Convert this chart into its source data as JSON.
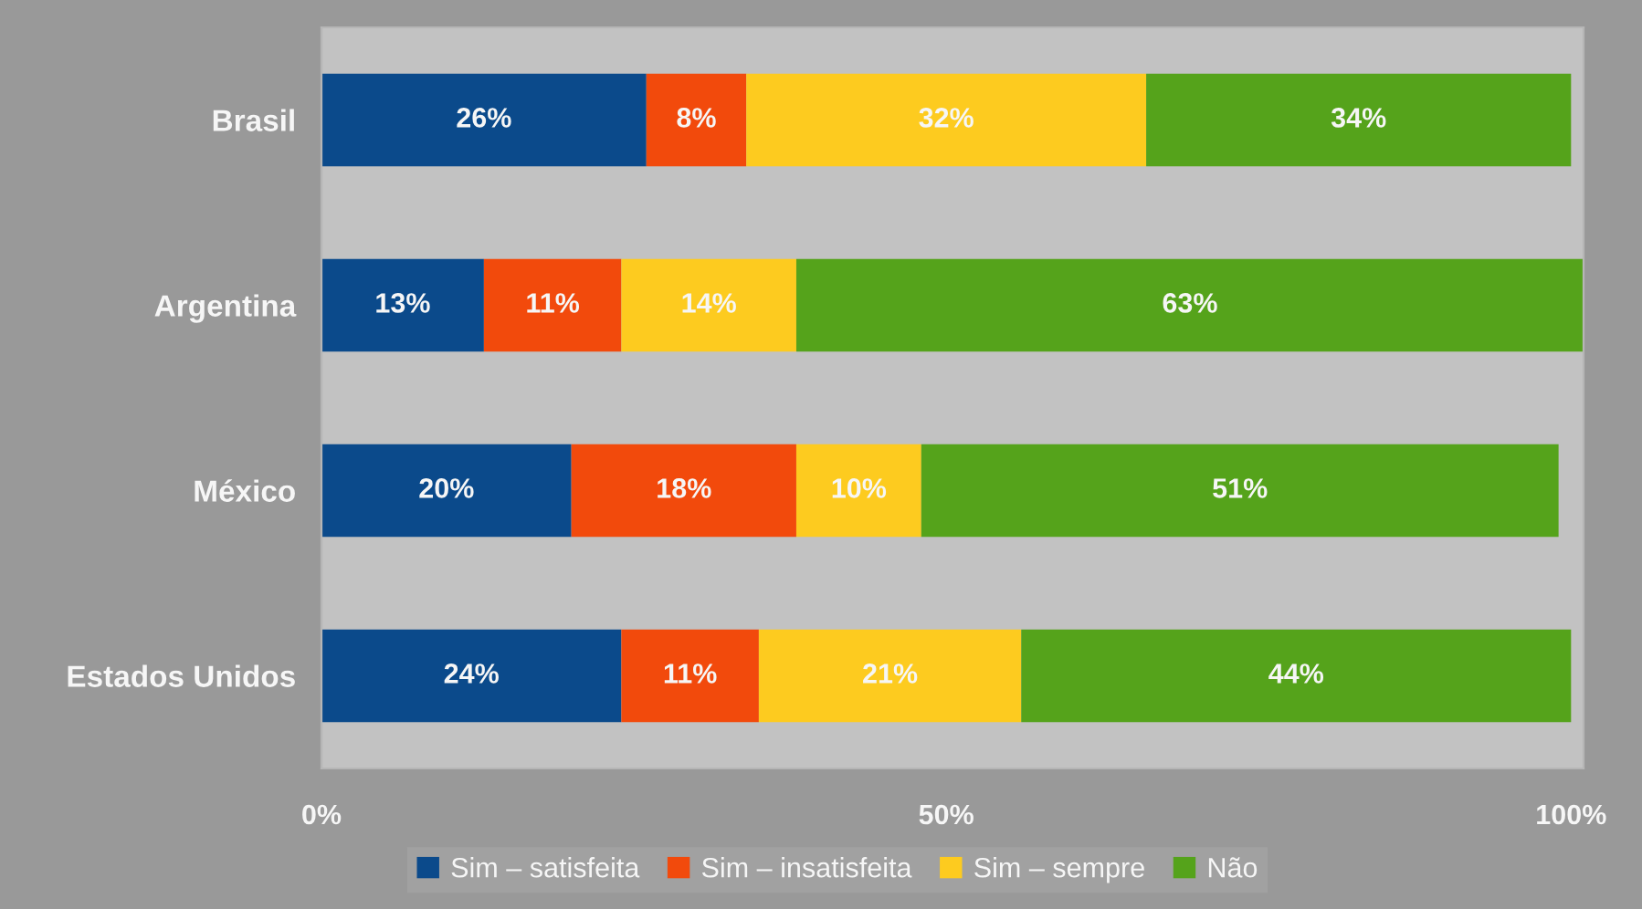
{
  "chart_data": {
    "type": "bar",
    "orientation": "horizontal",
    "stacked": true,
    "categories": [
      "Brasil",
      "Argentina",
      "México",
      "Estados Unidos"
    ],
    "series": [
      {
        "name": "Sim – satisfeita",
        "color": "#0b4a8b",
        "values": [
          26,
          13,
          20,
          24
        ],
        "value_labels": [
          "26%",
          "13%",
          "20%",
          "24%"
        ]
      },
      {
        "name": "Sim – insatisfeita",
        "color": "#f24a0c",
        "values": [
          8,
          11,
          18,
          11
        ],
        "value_labels": [
          "8%",
          "11%",
          "18%",
          "11%"
        ]
      },
      {
        "name": "Sim – sempre",
        "color": "#fdcb1f",
        "values": [
          32,
          14,
          10,
          21
        ],
        "value_labels": [
          "32%",
          "14%",
          "10%",
          "21%"
        ]
      },
      {
        "name": "Não",
        "color": "#55a31b",
        "values": [
          34,
          63,
          51,
          44
        ],
        "value_labels": [
          "34%",
          "63%",
          "51%",
          "44%"
        ]
      }
    ],
    "xlim": [
      0,
      101
    ],
    "xticks": [
      {
        "value": 0,
        "label": "0%"
      },
      {
        "value": 50,
        "label": "50%"
      },
      {
        "value": 100,
        "label": "100%"
      }
    ],
    "legend": "bottom",
    "grid": false
  }
}
